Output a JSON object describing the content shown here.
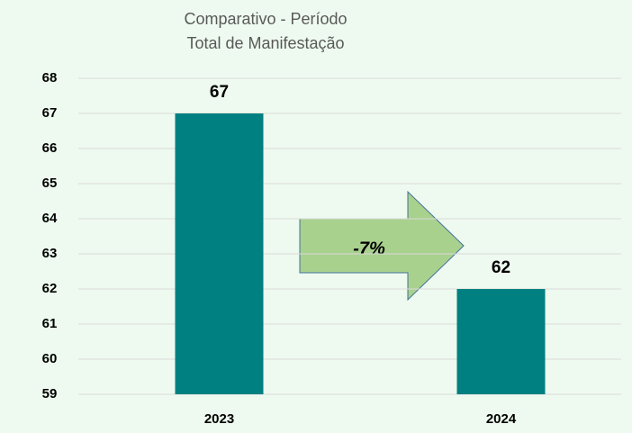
{
  "chart_data": {
    "type": "bar",
    "title": "Comparativo - Período",
    "subtitle": "Total de Manifestação",
    "categories": [
      "2023",
      "2024"
    ],
    "values": [
      67,
      62
    ],
    "color": "#008080",
    "ylim": [
      59,
      68
    ],
    "yticks": [
      59,
      60,
      61,
      62,
      63,
      64,
      65,
      66,
      67,
      68
    ],
    "grid": true,
    "annotation": "-7%"
  }
}
